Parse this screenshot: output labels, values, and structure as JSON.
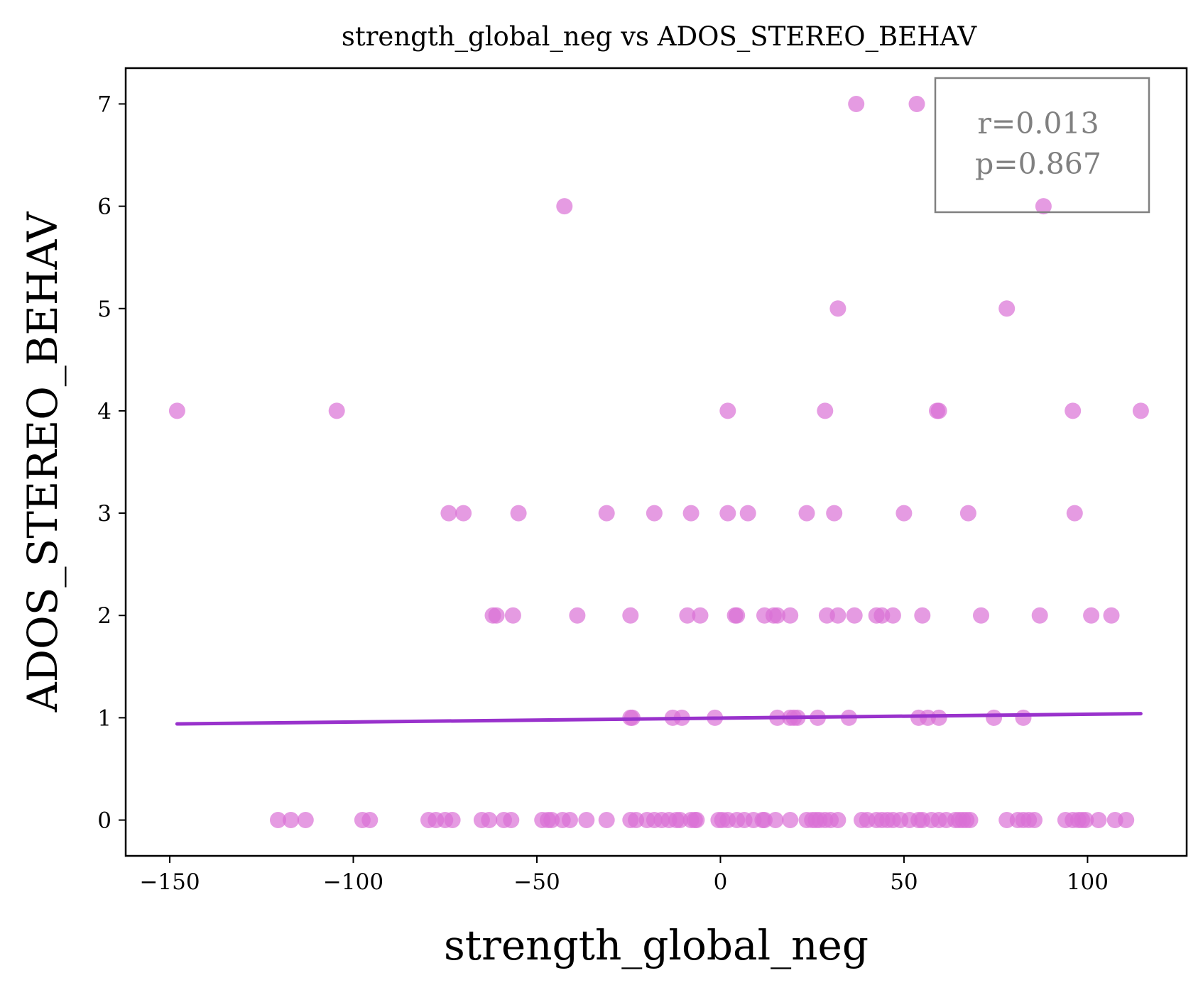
{
  "chart_data": {
    "type": "scatter",
    "title": "strength_global_neg vs ADOS_STEREO_BEHAV",
    "xlabel": "strength_global_neg",
    "ylabel": "ADOS_STEREO_BEHAV",
    "xlim": [
      -162,
      127
    ],
    "ylim": [
      -0.35,
      7.35
    ],
    "xticks": [
      -150,
      -100,
      -50,
      0,
      50,
      100
    ],
    "xtick_labels": [
      "−150",
      "−100",
      "−50",
      "0",
      "50",
      "100"
    ],
    "yticks": [
      0,
      1,
      2,
      3,
      4,
      5,
      6,
      7
    ],
    "ytick_labels": [
      "0",
      "1",
      "2",
      "3",
      "4",
      "5",
      "6",
      "7"
    ],
    "grid": false,
    "colors": {
      "points": "#da70d6",
      "fit_line": "#9932cc",
      "stats_box": "#808080"
    },
    "annotation": {
      "position": "top-right",
      "lines": [
        "r=0.013",
        "p=0.867"
      ]
    },
    "fit_line": {
      "x": [
        -148,
        114.5
      ],
      "y": [
        0.94,
        1.04
      ]
    },
    "points": [
      {
        "x": 37,
        "y": 7
      },
      {
        "x": 53.5,
        "y": 7
      },
      {
        "x": -42.5,
        "y": 6
      },
      {
        "x": 88,
        "y": 6
      },
      {
        "x": 32,
        "y": 5
      },
      {
        "x": 78,
        "y": 5
      },
      {
        "x": -148,
        "y": 4
      },
      {
        "x": -104.5,
        "y": 4
      },
      {
        "x": 2,
        "y": 4
      },
      {
        "x": 28.5,
        "y": 4
      },
      {
        "x": 59,
        "y": 4
      },
      {
        "x": 59.5,
        "y": 4
      },
      {
        "x": 96,
        "y": 4
      },
      {
        "x": 114.5,
        "y": 4
      },
      {
        "x": -74,
        "y": 3
      },
      {
        "x": -70,
        "y": 3
      },
      {
        "x": -55,
        "y": 3
      },
      {
        "x": -31,
        "y": 3
      },
      {
        "x": -18,
        "y": 3
      },
      {
        "x": -8,
        "y": 3
      },
      {
        "x": 2,
        "y": 3
      },
      {
        "x": 7.5,
        "y": 3
      },
      {
        "x": 23.5,
        "y": 3
      },
      {
        "x": 31,
        "y": 3
      },
      {
        "x": 50,
        "y": 3
      },
      {
        "x": 67.5,
        "y": 3
      },
      {
        "x": 96.5,
        "y": 3
      },
      {
        "x": -62,
        "y": 2
      },
      {
        "x": -61,
        "y": 2
      },
      {
        "x": -56.5,
        "y": 2
      },
      {
        "x": -39,
        "y": 2
      },
      {
        "x": -24.5,
        "y": 2
      },
      {
        "x": -9,
        "y": 2
      },
      {
        "x": -5.5,
        "y": 2
      },
      {
        "x": 4,
        "y": 2
      },
      {
        "x": 4.5,
        "y": 2
      },
      {
        "x": 12,
        "y": 2
      },
      {
        "x": 14.5,
        "y": 2
      },
      {
        "x": 15.5,
        "y": 2
      },
      {
        "x": 19,
        "y": 2
      },
      {
        "x": 29,
        "y": 2
      },
      {
        "x": 32,
        "y": 2
      },
      {
        "x": 36.5,
        "y": 2
      },
      {
        "x": 42.5,
        "y": 2
      },
      {
        "x": 44,
        "y": 2
      },
      {
        "x": 47,
        "y": 2
      },
      {
        "x": 55,
        "y": 2
      },
      {
        "x": 71,
        "y": 2
      },
      {
        "x": 87,
        "y": 2
      },
      {
        "x": 101,
        "y": 2
      },
      {
        "x": 106.5,
        "y": 2
      },
      {
        "x": -24.5,
        "y": 1
      },
      {
        "x": -24,
        "y": 1
      },
      {
        "x": -13,
        "y": 1
      },
      {
        "x": -10.5,
        "y": 1
      },
      {
        "x": -1.5,
        "y": 1
      },
      {
        "x": 15.5,
        "y": 1
      },
      {
        "x": 19,
        "y": 1
      },
      {
        "x": 20,
        "y": 1
      },
      {
        "x": 21,
        "y": 1
      },
      {
        "x": 26.5,
        "y": 1
      },
      {
        "x": 35,
        "y": 1
      },
      {
        "x": 54,
        "y": 1
      },
      {
        "x": 56.5,
        "y": 1
      },
      {
        "x": 59.5,
        "y": 1
      },
      {
        "x": 74.5,
        "y": 1
      },
      {
        "x": 82.5,
        "y": 1
      },
      {
        "x": -120.5,
        "y": 0
      },
      {
        "x": -117,
        "y": 0
      },
      {
        "x": -113,
        "y": 0
      },
      {
        "x": -97.5,
        "y": 0
      },
      {
        "x": -95.5,
        "y": 0
      },
      {
        "x": -79.5,
        "y": 0
      },
      {
        "x": -77.5,
        "y": 0
      },
      {
        "x": -75,
        "y": 0
      },
      {
        "x": -73,
        "y": 0
      },
      {
        "x": -65,
        "y": 0
      },
      {
        "x": -63,
        "y": 0
      },
      {
        "x": -59,
        "y": 0
      },
      {
        "x": -57,
        "y": 0
      },
      {
        "x": -48.5,
        "y": 0
      },
      {
        "x": -47,
        "y": 0
      },
      {
        "x": -46,
        "y": 0
      },
      {
        "x": -43,
        "y": 0
      },
      {
        "x": -41,
        "y": 0
      },
      {
        "x": -36.5,
        "y": 0
      },
      {
        "x": -31,
        "y": 0
      },
      {
        "x": -24.5,
        "y": 0
      },
      {
        "x": -23,
        "y": 0
      },
      {
        "x": -20,
        "y": 0
      },
      {
        "x": -18,
        "y": 0
      },
      {
        "x": -16,
        "y": 0
      },
      {
        "x": -14,
        "y": 0
      },
      {
        "x": -12,
        "y": 0
      },
      {
        "x": -11,
        "y": 0
      },
      {
        "x": -8,
        "y": 0
      },
      {
        "x": -7,
        "y": 0
      },
      {
        "x": -6.5,
        "y": 0
      },
      {
        "x": -0.5,
        "y": 0
      },
      {
        "x": 0.5,
        "y": 0
      },
      {
        "x": 2,
        "y": 0
      },
      {
        "x": 4.5,
        "y": 0
      },
      {
        "x": 6.5,
        "y": 0
      },
      {
        "x": 9,
        "y": 0
      },
      {
        "x": 11.5,
        "y": 0
      },
      {
        "x": 12,
        "y": 0
      },
      {
        "x": 15,
        "y": 0
      },
      {
        "x": 19,
        "y": 0
      },
      {
        "x": 23.5,
        "y": 0
      },
      {
        "x": 25,
        "y": 0
      },
      {
        "x": 26,
        "y": 0
      },
      {
        "x": 27,
        "y": 0
      },
      {
        "x": 28.5,
        "y": 0
      },
      {
        "x": 30,
        "y": 0
      },
      {
        "x": 32,
        "y": 0
      },
      {
        "x": 38.5,
        "y": 0
      },
      {
        "x": 40,
        "y": 0
      },
      {
        "x": 42.5,
        "y": 0
      },
      {
        "x": 44,
        "y": 0
      },
      {
        "x": 45.5,
        "y": 0
      },
      {
        "x": 47,
        "y": 0
      },
      {
        "x": 49,
        "y": 0
      },
      {
        "x": 51.5,
        "y": 0
      },
      {
        "x": 54,
        "y": 0
      },
      {
        "x": 55,
        "y": 0
      },
      {
        "x": 57.5,
        "y": 0
      },
      {
        "x": 59.5,
        "y": 0
      },
      {
        "x": 61.5,
        "y": 0
      },
      {
        "x": 64,
        "y": 0
      },
      {
        "x": 65,
        "y": 0
      },
      {
        "x": 66,
        "y": 0
      },
      {
        "x": 67,
        "y": 0
      },
      {
        "x": 68,
        "y": 0
      },
      {
        "x": 78,
        "y": 0
      },
      {
        "x": 81,
        "y": 0
      },
      {
        "x": 82.5,
        "y": 0
      },
      {
        "x": 84,
        "y": 0
      },
      {
        "x": 85.5,
        "y": 0
      },
      {
        "x": 94,
        "y": 0
      },
      {
        "x": 96,
        "y": 0
      },
      {
        "x": 97.5,
        "y": 0
      },
      {
        "x": 98.5,
        "y": 0
      },
      {
        "x": 99.5,
        "y": 0
      },
      {
        "x": 103,
        "y": 0
      },
      {
        "x": 107.5,
        "y": 0
      },
      {
        "x": 110.5,
        "y": 0
      }
    ]
  }
}
